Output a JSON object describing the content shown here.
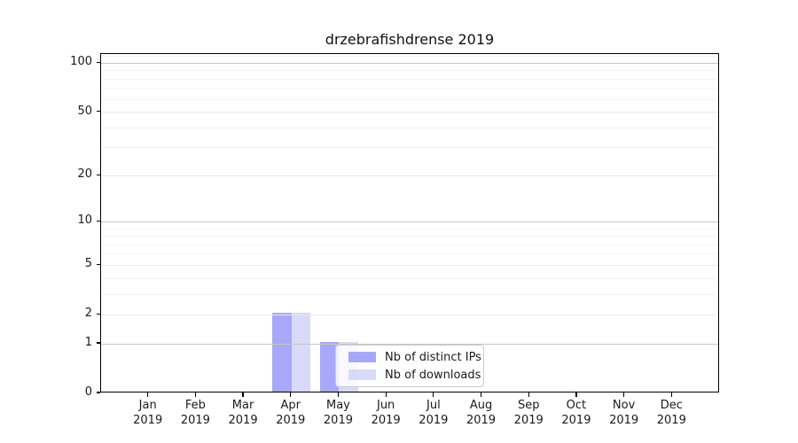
{
  "title": "drzebrafishdrense 2019",
  "colors": {
    "bar_distinct_ips": "#a8a8f8",
    "bar_downloads": "#d9d9fa",
    "grid_decade": "#c6c6c6",
    "grid_submajor": "#e8e8e8",
    "grid_minor": "#f3f3f3",
    "spine": "#000000",
    "text": "#1a1a1a",
    "legend_border": "#cccccc"
  },
  "y_axis": {
    "scale": "log10(1+value)",
    "tick_values": [
      0,
      1,
      2,
      5,
      10,
      20,
      50,
      100
    ],
    "tick_labels": [
      "0",
      "1",
      "2",
      "5",
      "10",
      "20",
      "50",
      "100"
    ],
    "decade_gridlines": [
      1,
      10,
      100
    ],
    "submajor_gridlines": [
      2,
      5,
      20,
      50
    ],
    "minor_gridlines": [
      3,
      4,
      6,
      7,
      8,
      9,
      30,
      40,
      60,
      70,
      80,
      90,
      110
    ],
    "top_value": 114
  },
  "x_axis": {
    "year_line": "2019",
    "month_labels": [
      "Jan",
      "Feb",
      "Mar",
      "Apr",
      "May",
      "Jun",
      "Jul",
      "Aug",
      "Sep",
      "Oct",
      "Nov",
      "Dec"
    ]
  },
  "legend": {
    "items": [
      {
        "label": "Nb of distinct IPs",
        "color": "#a8a8f8"
      },
      {
        "label": "Nb of downloads",
        "color": "#d9d9fa"
      }
    ]
  },
  "chart_data": {
    "type": "bar",
    "title": "drzebrafishdrense 2019",
    "categories": [
      "Jan 2019",
      "Feb 2019",
      "Mar 2019",
      "Apr 2019",
      "May 2019",
      "Jun 2019",
      "Jul 2019",
      "Aug 2019",
      "Sep 2019",
      "Oct 2019",
      "Nov 2019",
      "Dec 2019"
    ],
    "series": [
      {
        "name": "Nb of distinct IPs",
        "color": "#a8a8f8",
        "values": [
          0,
          0,
          0,
          2,
          1,
          0,
          0,
          0,
          0,
          0,
          0,
          0
        ]
      },
      {
        "name": "Nb of downloads",
        "color": "#d9d9fa",
        "values": [
          0,
          0,
          0,
          2,
          1,
          0,
          0,
          0,
          0,
          0,
          0,
          0
        ]
      }
    ],
    "xlabel": "",
    "ylabel": "",
    "yscale": "log1p",
    "ylim": [
      0,
      114
    ],
    "ytick_values": [
      0,
      1,
      2,
      5,
      10,
      20,
      50,
      100
    ],
    "grid": "horizontal",
    "legend_position": "inside lower-center"
  }
}
